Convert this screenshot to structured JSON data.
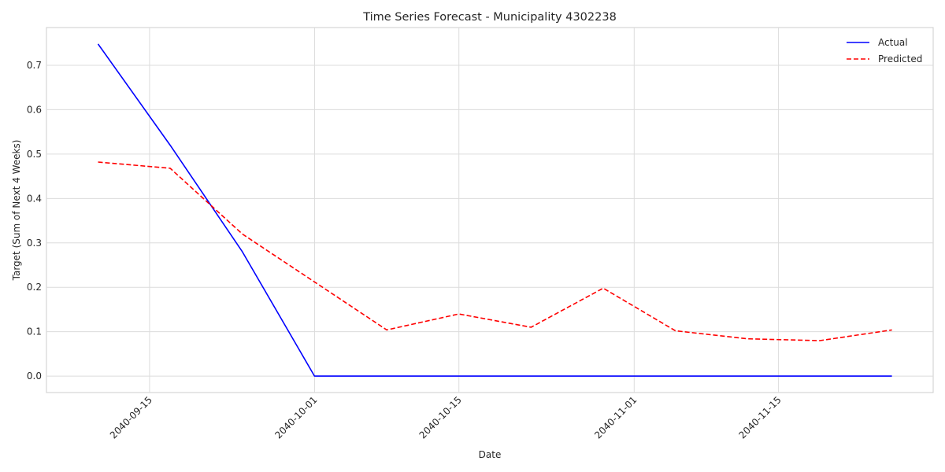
{
  "chart_data": {
    "type": "line",
    "title": "Time Series Forecast - Municipality 4302238",
    "xlabel": "Date",
    "ylabel": "Target (Sum of Next 4 Weeks)",
    "x": [
      "2040-09-10",
      "2040-09-17",
      "2040-09-24",
      "2040-10-01",
      "2040-10-08",
      "2040-10-15",
      "2040-10-22",
      "2040-10-29",
      "2040-11-05",
      "2040-11-12",
      "2040-11-19",
      "2040-11-26"
    ],
    "series": [
      {
        "name": "Actual",
        "color": "#0000ff",
        "style": "solid",
        "values": [
          0.748,
          0.52,
          0.28,
          0.0,
          0.0,
          0.0,
          0.0,
          0.0,
          0.0,
          0.0,
          0.0,
          0.0
        ]
      },
      {
        "name": "Predicted",
        "color": "#ff0000",
        "style": "dashed",
        "values": [
          0.482,
          0.468,
          0.32,
          0.212,
          0.104,
          0.14,
          0.11,
          0.198,
          0.102,
          0.084,
          0.08,
          0.104
        ]
      }
    ],
    "x_ticks": [
      "2040-09-15",
      "2040-10-01",
      "2040-10-15",
      "2040-11-01",
      "2040-11-15"
    ],
    "y_ticks": [
      "0.0",
      "0.1",
      "0.2",
      "0.3",
      "0.4",
      "0.5",
      "0.6",
      "0.7"
    ],
    "xlim": [
      "2040-09-05",
      "2040-11-30"
    ],
    "ylim": [
      -0.037,
      0.785
    ],
    "grid": true,
    "legend": "top-right"
  }
}
